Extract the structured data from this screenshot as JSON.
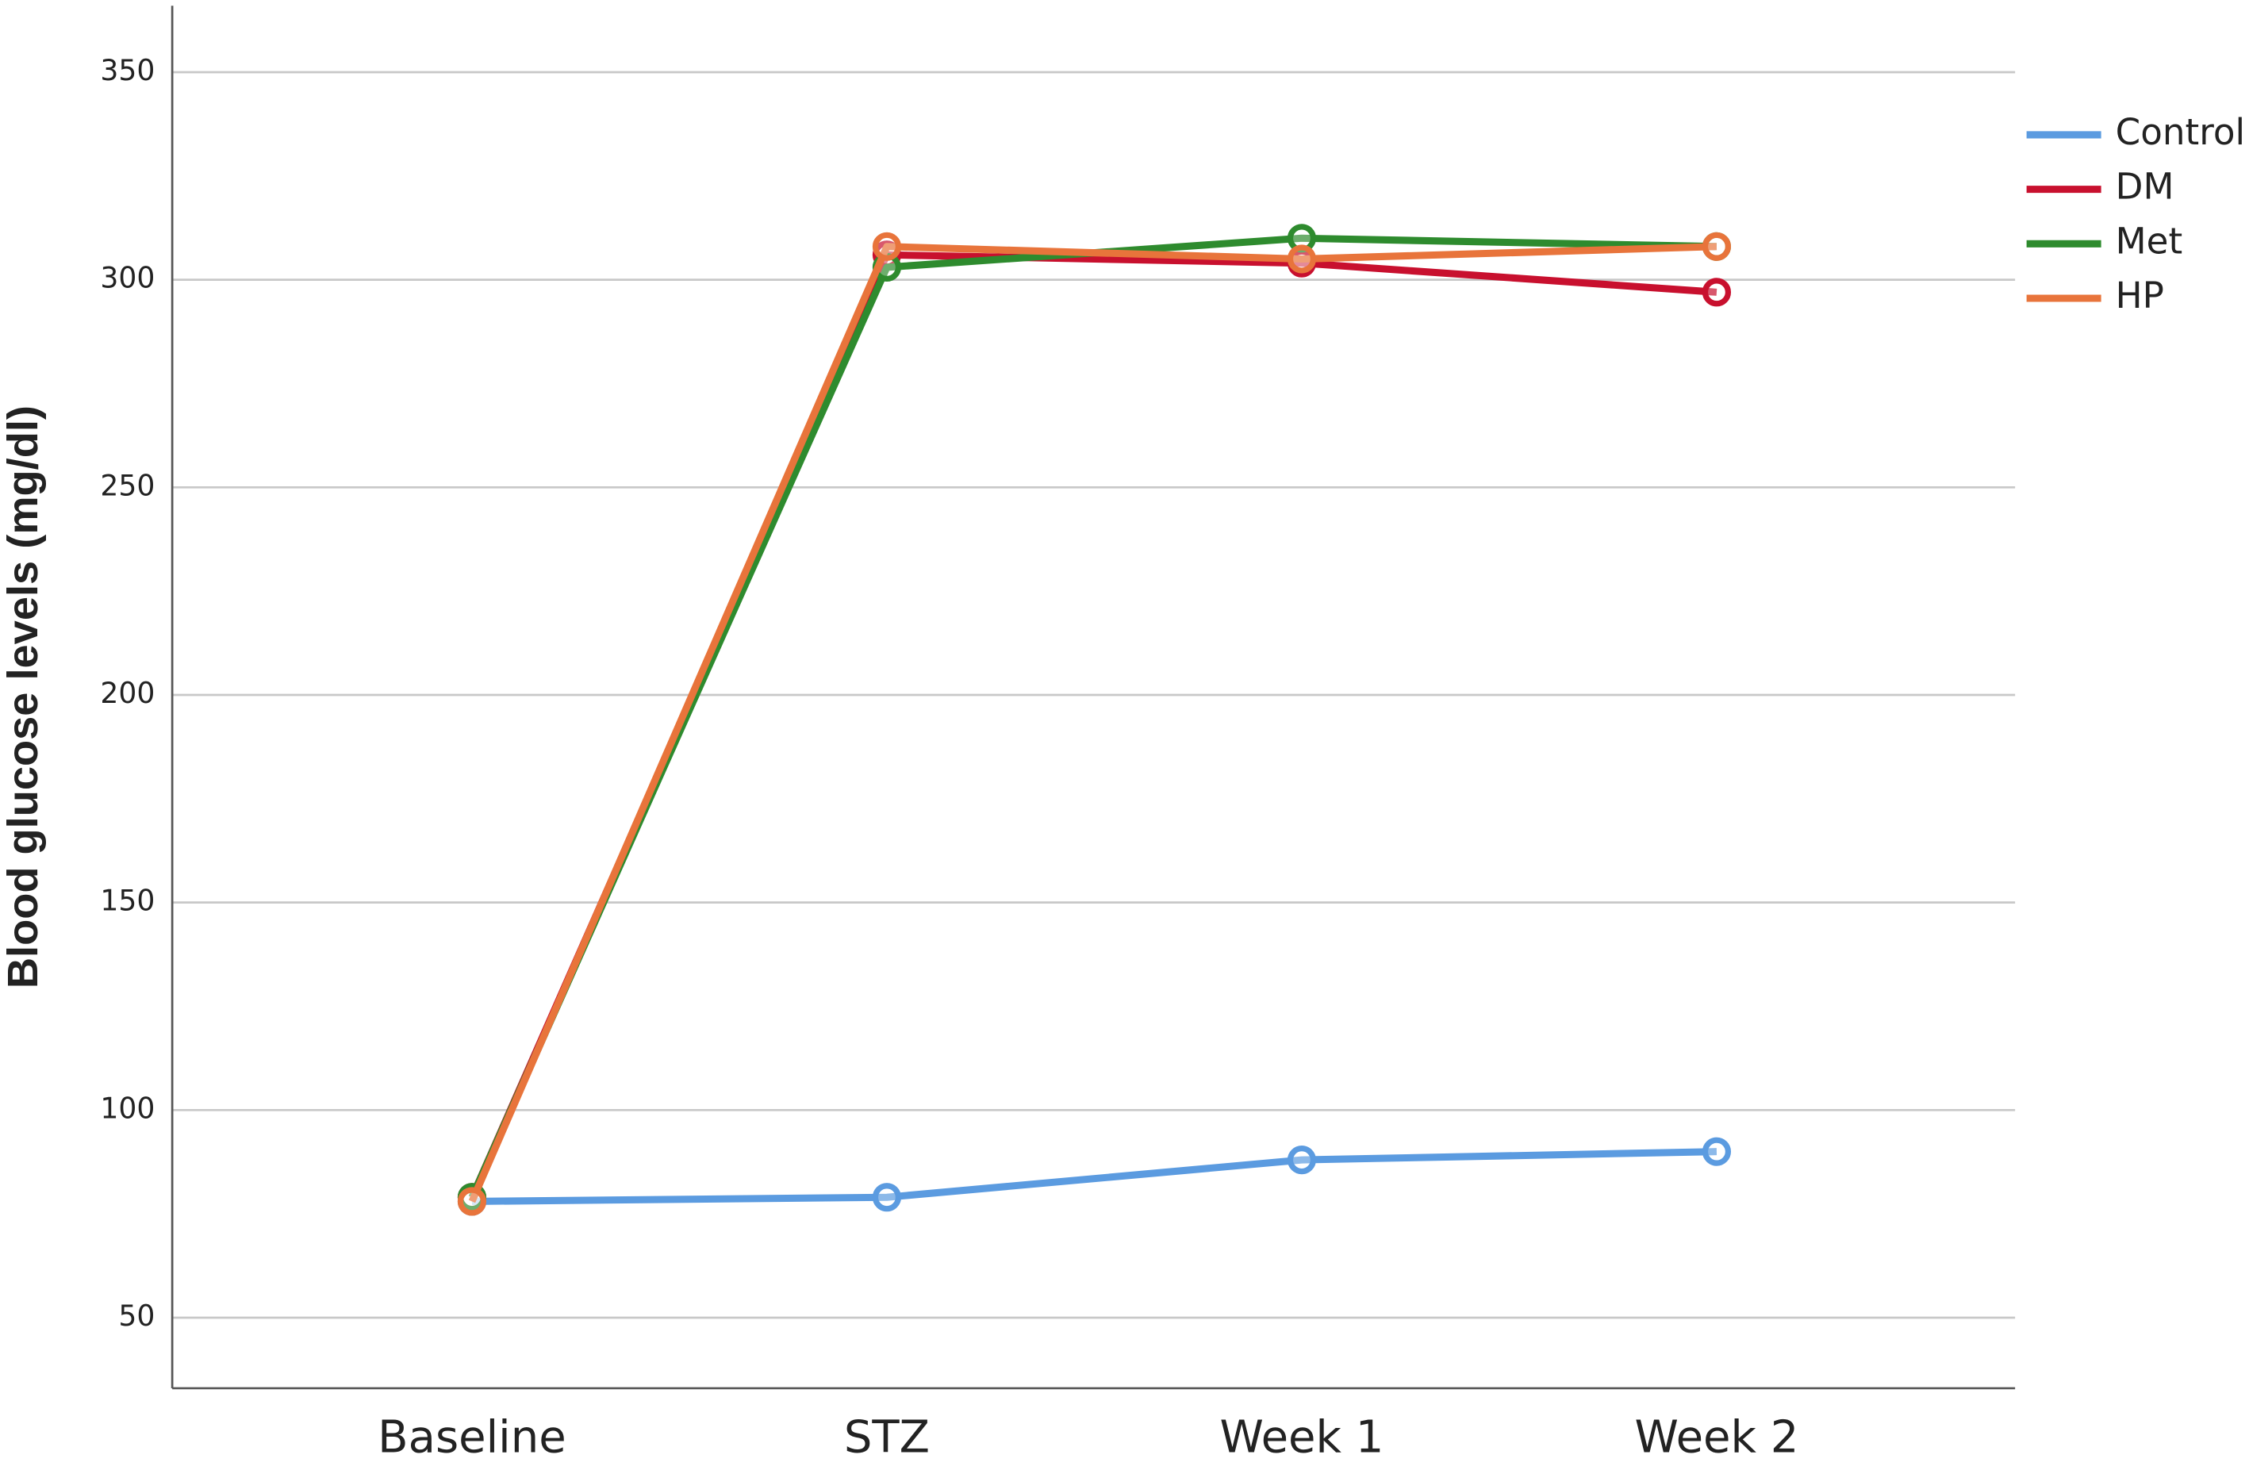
{
  "chart_data": {
    "type": "line",
    "y_label": "Blood glucose levels (mg/dl)",
    "categories": [
      "Baseline",
      "STZ",
      "Week 1",
      "Week 2"
    ],
    "series": [
      {
        "name": "Control",
        "color": "#5b9be0",
        "values": [
          78,
          79,
          88,
          90
        ]
      },
      {
        "name": "DM",
        "color": "#c8102e",
        "values": [
          79,
          306,
          304,
          297
        ]
      },
      {
        "name": "Met",
        "color": "#2e8b2e",
        "values": [
          79,
          303,
          310,
          308
        ]
      },
      {
        "name": "HP",
        "color": "#e8743b",
        "values": [
          78,
          308,
          305,
          308
        ]
      }
    ],
    "ylim": [
      33,
      366
    ],
    "yticks": [
      50,
      100,
      150,
      200,
      250,
      300,
      350
    ],
    "grid": true,
    "legend": "right"
  }
}
